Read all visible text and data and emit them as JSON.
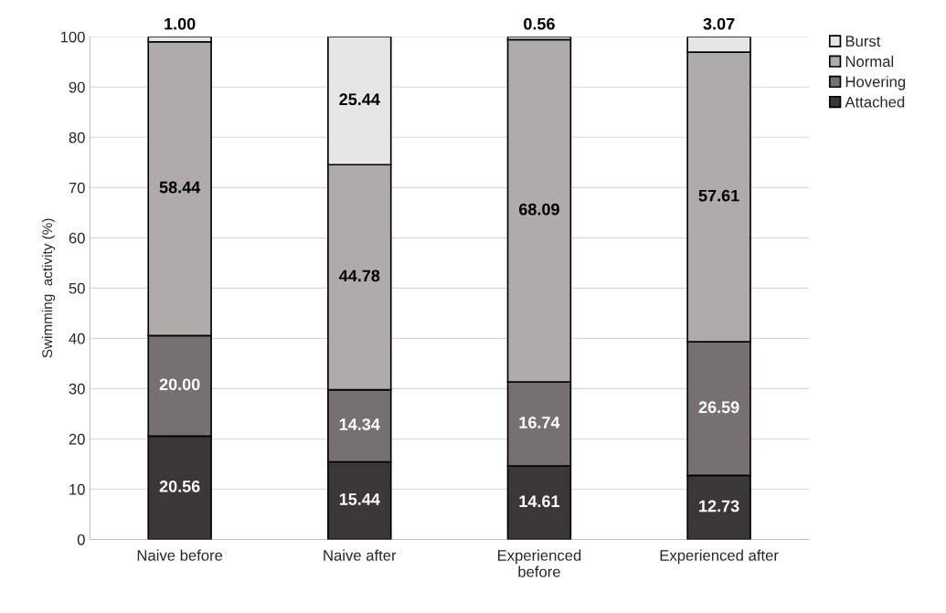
{
  "chart_data": {
    "type": "bar",
    "ylabel": "Swimming  activity (%)",
    "categories": [
      "Naive before",
      "Naive after",
      "Experienced\nbefore",
      "Experienced after"
    ],
    "stacked": true,
    "ylim": [
      0,
      100
    ],
    "yticks": [
      0,
      10,
      20,
      30,
      40,
      50,
      60,
      70,
      80,
      90,
      100
    ],
    "grid": "y",
    "legend": "top right",
    "series": [
      {
        "name": "Attached",
        "color": "#3a3836",
        "values": [
          20.56,
          15.44,
          14.61,
          12.73
        ],
        "value_labels": [
          "20.56",
          "15.44",
          "14.61",
          "12.73"
        ]
      },
      {
        "name": "Hovering",
        "color": "#767170",
        "values": [
          20.0,
          14.34,
          16.74,
          26.59
        ],
        "value_labels": [
          "20.00",
          "14.34",
          "16.74",
          "26.59"
        ]
      },
      {
        "name": "Normal",
        "color": "#afabab",
        "values": [
          58.44,
          44.78,
          68.09,
          57.61
        ],
        "value_labels": [
          "58.44",
          "44.78",
          "68.09",
          "57.61"
        ]
      },
      {
        "name": "Burst",
        "color": "#e7e6e6",
        "values": [
          1.0,
          25.44,
          0.56,
          3.07
        ],
        "value_labels": [
          "1.00",
          "25.44",
          "0.56",
          "3.07"
        ]
      }
    ]
  }
}
